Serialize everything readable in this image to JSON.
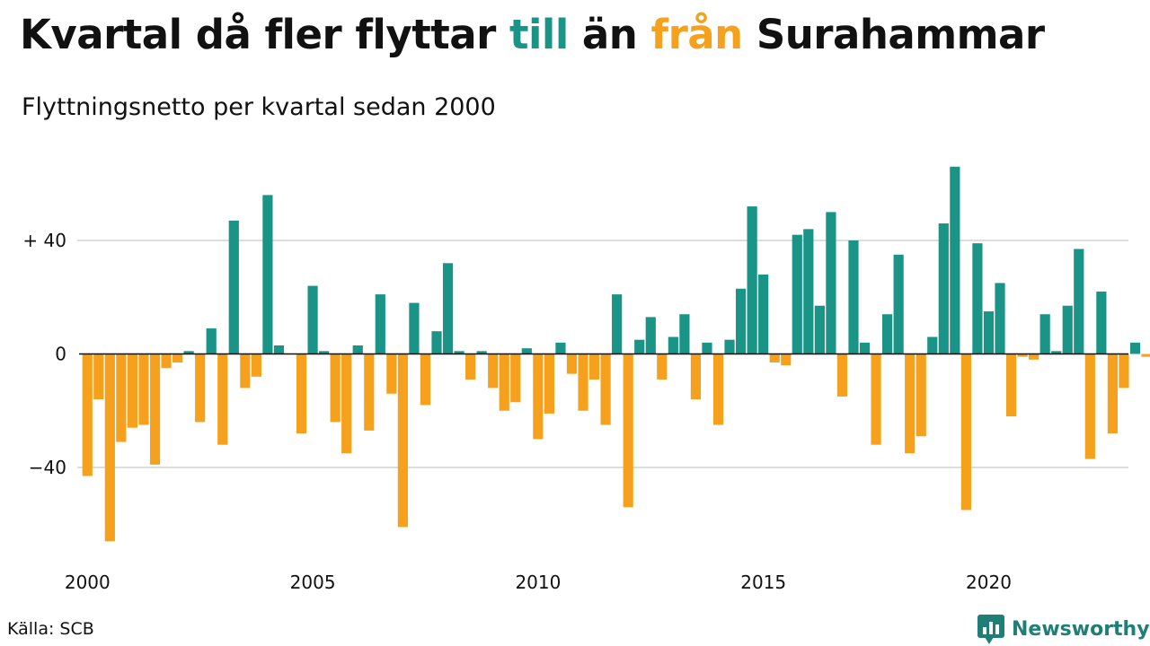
{
  "title": {
    "part1": "Kvartal då fler flyttar ",
    "pos_word": "till",
    "part2": " än ",
    "neg_word": "från",
    "part3": " Surahammar"
  },
  "subtitle": "Flyttningsnetto per kvartal sedan 2000",
  "source": "Källa: SCB",
  "brand": {
    "name": "Newsworthy",
    "icon": "bar-chart-speech-icon"
  },
  "colors": {
    "positive": "#1a9486",
    "negative": "#f5a11e",
    "grid": "#dddddd"
  },
  "chart_data": {
    "type": "bar",
    "title": "Kvartal då fler flyttar till än från Surahammar",
    "subtitle": "Flyttningsnetto per kvartal sedan 2000",
    "y_ticks": [
      40,
      0,
      -40
    ],
    "y_tick_labels": [
      "+ 40",
      "0",
      "−40"
    ],
    "ylim": [
      -70,
      70
    ],
    "x_ticks": [
      2000,
      2005,
      2010,
      2015,
      2020
    ],
    "x_tick_labels": [
      "2000",
      "2005",
      "2010",
      "2015",
      "2020"
    ],
    "grid": true,
    "start": "2000 Q1",
    "interval": "quarter",
    "values": [
      -43,
      -16,
      -66,
      -31,
      -26,
      -25,
      -39,
      -5,
      -3,
      1,
      -24,
      9,
      -32,
      47,
      -12,
      -8,
      56,
      3,
      0,
      -28,
      24,
      1,
      -24,
      -35,
      3,
      -27,
      21,
      -14,
      -61,
      18,
      -18,
      8,
      32,
      1,
      -9,
      1,
      -12,
      -20,
      -17,
      2,
      -30,
      -21,
      4,
      -7,
      -20,
      -9,
      -25,
      21,
      -54,
      5,
      13,
      -9,
      6,
      14,
      -16,
      4,
      -25,
      5,
      23,
      52,
      28,
      -3,
      -4,
      42,
      44,
      17,
      50,
      -15,
      40,
      4,
      -32,
      14,
      35,
      -35,
      -29,
      6,
      46,
      66,
      -55,
      39,
      15,
      25,
      -22,
      -1,
      -2,
      14,
      1,
      17,
      37,
      -37,
      22,
      -28,
      -12,
      4,
      -1
    ]
  }
}
